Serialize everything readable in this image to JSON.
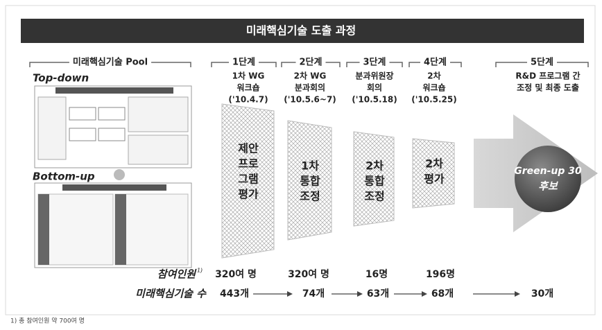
{
  "header": {
    "title": "미래핵심기술 도출 과정"
  },
  "pool": {
    "label": "미래핵심기술 Pool",
    "top_down": "Top-down",
    "bottom_up": "Bottom-up"
  },
  "stages": [
    {
      "label": "1단계",
      "desc": [
        "1차 WG",
        "워크숍",
        "('10.4.7)"
      ],
      "funnel": [
        "제안",
        "프로",
        "그램",
        "평가"
      ]
    },
    {
      "label": "2단계",
      "desc": [
        "2차 WG",
        "분과회의",
        "('10.5.6~7)"
      ],
      "funnel": [
        "1차",
        "통합",
        "조정"
      ]
    },
    {
      "label": "3단계",
      "desc": [
        "분과위원장",
        "회의",
        "('10.5.18)"
      ],
      "funnel": [
        "2차",
        "통합",
        "조정"
      ]
    },
    {
      "label": "4단계",
      "desc": [
        "2차",
        "워크숍",
        "('10.5.25)"
      ],
      "funnel": [
        "2차",
        "평가"
      ]
    },
    {
      "label": "5단계",
      "desc": [
        "R&D 프로그램 간",
        "조정 및 최종 도출"
      ],
      "result": [
        "Green-up 30",
        "후보"
      ]
    }
  ],
  "participants": {
    "label": "참여인원",
    "note_mark": "1)",
    "values": [
      "320여 명",
      "320여 명",
      "16명",
      "196명"
    ]
  },
  "tech_count": {
    "label": "미래핵심기술 수",
    "values": [
      "443개",
      "74개",
      "63개",
      "68개",
      "30개"
    ]
  },
  "footnote": "1) 총 참여인원 약 700여 명"
}
